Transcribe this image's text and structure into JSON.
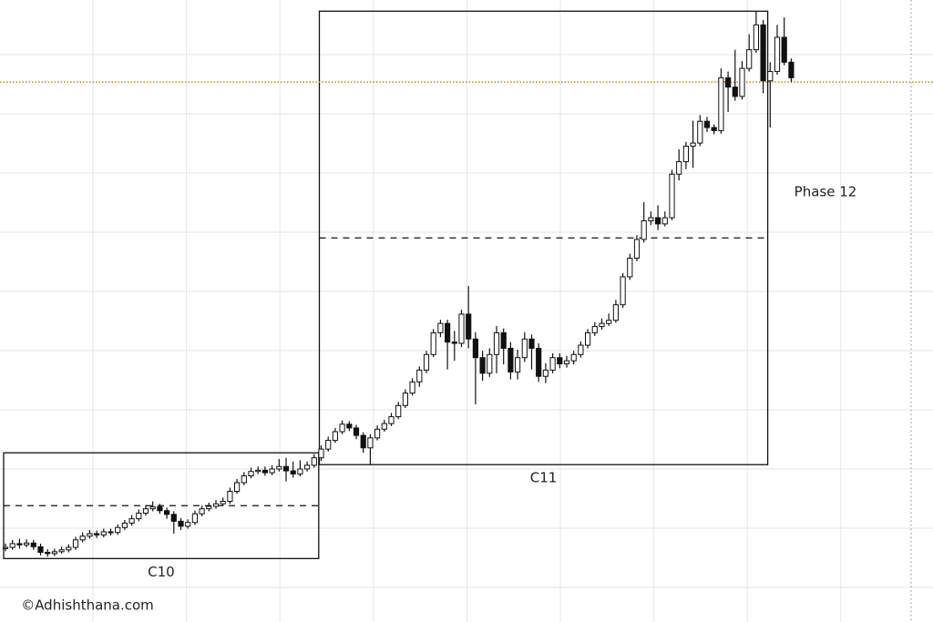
{
  "chart_data": {
    "type": "candlestick",
    "open": [
      11.8,
      12.0,
      12.6,
      12.4,
      12.7,
      12.1,
      11.2,
      11.0,
      11.3,
      11.6,
      12.0,
      13.2,
      13.8,
      14.2,
      14.0,
      14.5,
      14.4,
      15.2,
      15.9,
      16.6,
      17.5,
      18.2,
      18.5,
      17.9,
      17.3,
      16.2,
      15.4,
      16.0,
      17.4,
      18.2,
      18.6,
      19.0,
      19.4,
      21.0,
      22.4,
      23.5,
      24.2,
      24.4,
      24.0,
      24.6,
      25.0,
      24.3,
      23.8,
      24.6,
      25.2,
      26.4,
      27.8,
      29.2,
      30.6,
      31.8,
      31.2,
      30.0,
      28.0,
      29.6,
      31.0,
      31.9,
      33.0,
      34.8,
      36.8,
      38.6,
      40.5,
      43.0,
      46.5,
      48.0,
      45.0,
      44.8,
      49.5,
      45.5,
      42.5,
      40.0,
      43.0,
      46.5,
      44.0,
      40.2,
      42.5,
      45.5,
      44.0,
      39.5,
      40.5,
      42.5,
      41.5,
      42.0,
      43.0,
      44.5,
      46.5,
      47.5,
      48.0,
      48.5,
      51.0,
      55.5,
      58.5,
      61.5,
      64.5,
      65.0,
      64.0,
      65.0,
      72.0,
      74.0,
      76.5,
      77.0,
      80.5,
      79.5,
      79.0,
      87.5,
      86.0,
      84.5,
      89.0,
      92.0,
      96.0,
      87.0,
      88.5,
      94.0,
      90.0
    ],
    "high": [
      12.6,
      13.2,
      13.4,
      13.3,
      13.2,
      12.6,
      11.7,
      11.8,
      12.1,
      12.5,
      13.7,
      14.4,
      14.8,
      14.7,
      15.0,
      15.0,
      15.7,
      16.4,
      17.2,
      18.1,
      18.8,
      19.4,
      19.0,
      18.4,
      17.8,
      16.7,
      16.5,
      17.9,
      18.7,
      19.2,
      19.6,
      20.0,
      21.6,
      23.0,
      24.1,
      24.8,
      25.0,
      25.0,
      25.2,
      26.2,
      26.4,
      25.8,
      26.0,
      25.8,
      27.0,
      28.4,
      29.8,
      31.2,
      32.4,
      32.3,
      31.7,
      30.5,
      30.2,
      31.6,
      32.5,
      33.6,
      35.4,
      37.4,
      39.2,
      41.1,
      43.6,
      47.1,
      48.6,
      48.6,
      46.8,
      50.2,
      54.0,
      46.6,
      43.6,
      44.0,
      47.6,
      47.2,
      45.0,
      43.8,
      46.6,
      46.2,
      44.8,
      41.6,
      43.2,
      43.2,
      42.8,
      43.6,
      45.1,
      47.1,
      48.2,
      48.8,
      49.6,
      51.8,
      56.1,
      59.2,
      62.2,
      67.5,
      66.0,
      67.0,
      66.0,
      72.7,
      76.0,
      77.2,
      80.6,
      81.5,
      81.2,
      80.0,
      89.0,
      88.5,
      92.0,
      90.2,
      94.5,
      98.2,
      96.8,
      90.0,
      96.0,
      97.2,
      90.6
    ],
    "low": [
      11.4,
      11.6,
      11.8,
      12.0,
      11.6,
      10.7,
      10.5,
      10.6,
      11.0,
      11.2,
      11.6,
      12.8,
      13.4,
      13.5,
      13.6,
      13.9,
      14.0,
      14.8,
      15.5,
      16.2,
      17.1,
      17.8,
      17.4,
      16.6,
      14.2,
      14.8,
      15.0,
      15.6,
      17.0,
      17.8,
      18.2,
      18.6,
      19.0,
      20.6,
      22.0,
      23.1,
      23.8,
      23.5,
      23.6,
      24.2,
      22.6,
      23.2,
      23.4,
      24.2,
      24.8,
      25.9,
      27.4,
      28.8,
      30.2,
      30.7,
      29.4,
      27.2,
      25.4,
      29.2,
      30.6,
      31.5,
      32.6,
      34.4,
      36.4,
      37.8,
      40.0,
      42.6,
      45.8,
      40.6,
      42.0,
      44.2,
      44.0,
      35.0,
      38.8,
      39.4,
      40.0,
      41.4,
      39.0,
      39.0,
      41.8,
      40.6,
      38.6,
      38.4,
      40.0,
      40.8,
      40.9,
      41.4,
      42.5,
      44.0,
      46.0,
      47.0,
      47.6,
      48.1,
      50.5,
      55.0,
      58.0,
      61.0,
      63.8,
      63.0,
      63.6,
      64.6,
      71.0,
      72.8,
      73.0,
      76.5,
      78.8,
      78.4,
      78.5,
      82.0,
      83.8,
      84.0,
      88.5,
      91.5,
      85.0,
      79.5,
      88.0,
      89.5,
      86.8
    ],
    "close": [
      12.0,
      12.6,
      12.4,
      12.7,
      12.1,
      11.2,
      11.0,
      11.3,
      11.6,
      12.0,
      13.2,
      13.8,
      14.2,
      14.0,
      14.5,
      14.4,
      15.2,
      15.9,
      16.6,
      17.5,
      18.2,
      18.5,
      17.9,
      17.3,
      16.2,
      15.4,
      16.0,
      17.4,
      18.2,
      18.6,
      19.0,
      19.4,
      21.0,
      22.4,
      23.5,
      24.2,
      24.4,
      24.0,
      24.6,
      25.0,
      24.3,
      23.8,
      24.6,
      25.2,
      26.4,
      27.8,
      29.2,
      30.6,
      31.8,
      31.2,
      30.0,
      28.0,
      29.6,
      31.0,
      31.9,
      33.0,
      34.8,
      36.8,
      38.6,
      40.5,
      43.0,
      46.5,
      48.0,
      45.0,
      44.8,
      49.5,
      45.5,
      42.5,
      40.0,
      43.0,
      46.5,
      44.0,
      40.2,
      42.5,
      45.5,
      44.0,
      39.5,
      40.5,
      42.5,
      41.5,
      42.0,
      43.0,
      44.5,
      46.5,
      47.5,
      48.0,
      48.5,
      51.0,
      55.5,
      58.5,
      61.5,
      64.5,
      65.0,
      64.0,
      65.0,
      72.0,
      74.0,
      76.5,
      77.0,
      80.5,
      79.5,
      79.0,
      87.5,
      86.0,
      84.5,
      89.0,
      92.0,
      96.0,
      87.0,
      88.5,
      94.0,
      90.0,
      87.5
    ],
    "ylim": [
      0,
      100
    ],
    "grid": true,
    "phases": [
      {
        "label": "C10",
        "high": 27.2,
        "low": 10.2
      },
      {
        "label": "C11",
        "high": 98.2,
        "low": 25.3
      }
    ],
    "annotation": "Phase 12",
    "price_line": 86.8,
    "price_line_color": "#c8860a",
    "watermark": "©Adhishthana.com"
  }
}
